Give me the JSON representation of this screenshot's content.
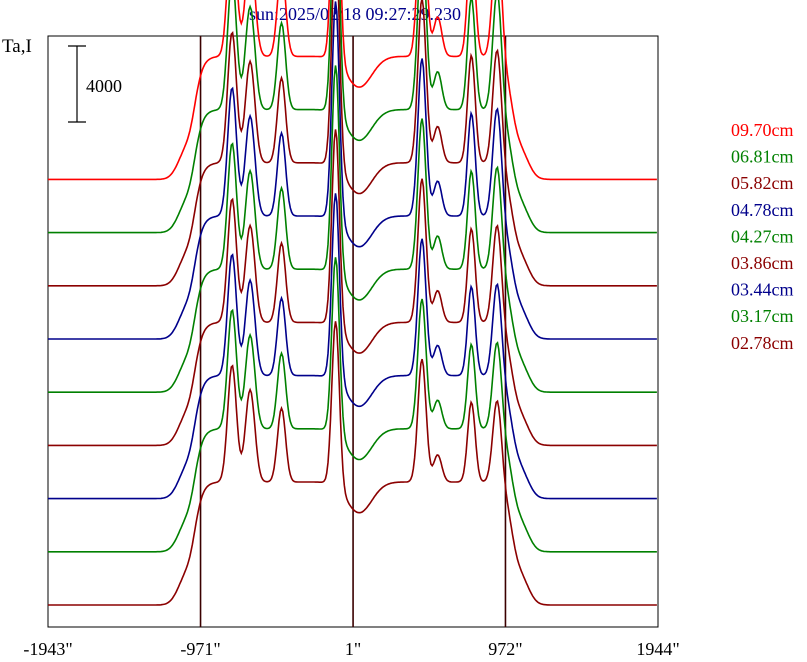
{
  "chart_data": {
    "type": "line",
    "title": "sun:2025/02/18 09:27:29.230",
    "ylabel": "Ta,I",
    "scalebar_label": "4000",
    "scalebar_value": 4000,
    "xlim": [
      -1943,
      1944
    ],
    "x_ticks": [
      -1943,
      -971,
      1,
      972,
      1944
    ],
    "x_tick_labels": [
      "-1943\"",
      "-971\"",
      "1\"",
      "972\"",
      "1944\""
    ],
    "vertical_markers": [
      -971,
      1,
      972
    ],
    "series_offset_step": 2800,
    "series": [
      {
        "name": "09.70cm",
        "color": "#ff0000"
      },
      {
        "name": "06.81cm",
        "color": "#008000"
      },
      {
        "name": "05.82cm",
        "color": "#8b0000"
      },
      {
        "name": "04.78cm",
        "color": "#00008b"
      },
      {
        "name": "04.27cm",
        "color": "#008000"
      },
      {
        "name": "03.86cm",
        "color": "#8b0000"
      },
      {
        "name": "03.44cm",
        "color": "#00008b"
      },
      {
        "name": "03.17cm",
        "color": "#008000"
      },
      {
        "name": "02.78cm",
        "color": "#8b0000"
      }
    ],
    "legend_position": "right"
  }
}
